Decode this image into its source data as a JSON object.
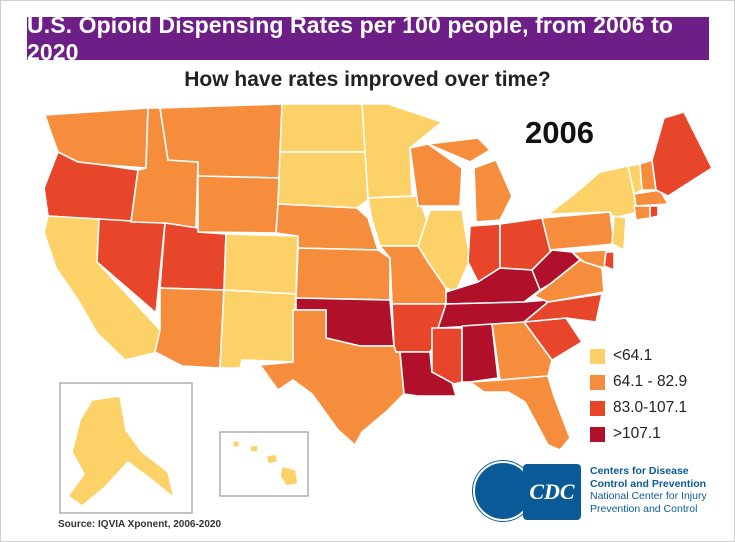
{
  "title": "U.S. Opioid Dispensing Rates per 100 people, from 2006 to 2020",
  "subtitle": "How have rates improved over time?",
  "year": "2006",
  "legend": [
    {
      "label": "<64.1",
      "color": "#fcd167"
    },
    {
      "label": "64.1 - 82.9",
      "color": "#f68d3c"
    },
    {
      "label": "83.0-107.1",
      "color": "#e8462b"
    },
    {
      "label": ">107.1",
      "color": "#b0102a"
    }
  ],
  "state_categories": {
    "WA": 1,
    "OR": 2,
    "CA": 0,
    "NV": 2,
    "ID": 1,
    "MT": 1,
    "WY": 1,
    "UT": 2,
    "AZ": 1,
    "CO": 0,
    "NM": 0,
    "ND": 0,
    "SD": 0,
    "NE": 1,
    "KS": 1,
    "OK": 3,
    "TX": 1,
    "MN": 0,
    "IA": 0,
    "MO": 1,
    "AR": 2,
    "LA": 3,
    "WI": 1,
    "IL": 0,
    "MI": 1,
    "IN": 2,
    "OH": 2,
    "KY": 3,
    "TN": 3,
    "MS": 2,
    "AL": 3,
    "GA": 1,
    "FL": 1,
    "SC": 2,
    "NC": 2,
    "VA": 1,
    "WV": 3,
    "PA": 1,
    "NY": 0,
    "ME": 2,
    "NH": 1,
    "VT": 0,
    "MA": 1,
    "RI": 2,
    "CT": 1,
    "NJ": 0,
    "DE": 2,
    "MD": 1,
    "AK": 0,
    "HI": 0
  },
  "source": "Source: IQVIA Xponent, 2006-2020",
  "org": {
    "line1": "Centers for Disease",
    "line2": "Control and Prevention",
    "line3": "National Center for Injury",
    "line4": "Prevention and Control",
    "logo_text": "CDC"
  }
}
